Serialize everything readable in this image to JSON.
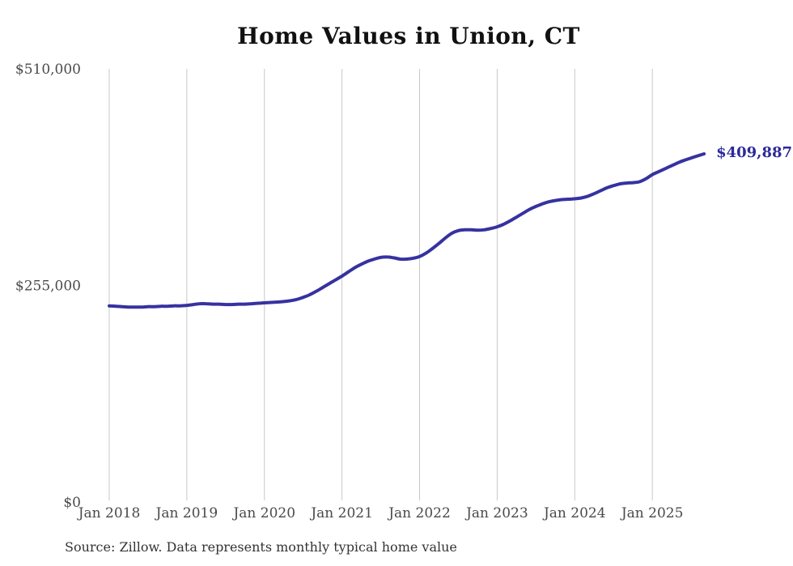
{
  "header": {
    "title": "Home Values in Union, CT"
  },
  "annotation": {
    "latest_value_label": "$409,887"
  },
  "footer": {
    "source_note": "Source: Zillow. Data represents monthly typical home value"
  },
  "colors": {
    "line": "#3632a0",
    "annotation_text": "#2d2a9b",
    "gridline": "#c8c8c8",
    "title_text": "#111111",
    "axis_text": "#4a4a4a",
    "source_text": "#333333",
    "background": "#ffffff"
  },
  "chart_data": {
    "type": "line",
    "title": "Home Values in Union, CT",
    "series_name": "Monthly typical home value (ZHVI)",
    "ylim": [
      0,
      510000
    ],
    "grid": "vertical gridline at each January, no horizontal gridlines",
    "legend": "none",
    "last_value_label": "$409,887",
    "y_ticks": [
      {
        "label": "$0",
        "value": 0
      },
      {
        "label": "$255,000",
        "value": 255000
      },
      {
        "label": "$510,000",
        "value": 510000
      }
    ],
    "x_tick_labels": [
      "Jan 2018",
      "Jan 2019",
      "Jan 2020",
      "Jan 2021",
      "Jan 2022",
      "Jan 2023",
      "Jan 2024",
      "Jan 2025"
    ],
    "months_per_tick": 12,
    "x": [
      "2018-01",
      "2018-02",
      "2018-03",
      "2018-04",
      "2018-05",
      "2018-06",
      "2018-07",
      "2018-08",
      "2018-09",
      "2018-10",
      "2018-11",
      "2018-12",
      "2019-01",
      "2019-02",
      "2019-03",
      "2019-04",
      "2019-05",
      "2019-06",
      "2019-07",
      "2019-08",
      "2019-09",
      "2019-10",
      "2019-11",
      "2019-12",
      "2020-01",
      "2020-02",
      "2020-03",
      "2020-04",
      "2020-05",
      "2020-06",
      "2020-07",
      "2020-08",
      "2020-09",
      "2020-10",
      "2020-11",
      "2020-12",
      "2021-01",
      "2021-02",
      "2021-03",
      "2021-04",
      "2021-05",
      "2021-06",
      "2021-07",
      "2021-08",
      "2021-09",
      "2021-10",
      "2021-11",
      "2021-12",
      "2022-01",
      "2022-02",
      "2022-03",
      "2022-04",
      "2022-05",
      "2022-06",
      "2022-07",
      "2022-08",
      "2022-09",
      "2022-10",
      "2022-11",
      "2022-12",
      "2023-01",
      "2023-02",
      "2023-03",
      "2023-04",
      "2023-05",
      "2023-06",
      "2023-07",
      "2023-08",
      "2023-09",
      "2023-10",
      "2023-11",
      "2023-12",
      "2024-01",
      "2024-02",
      "2024-03",
      "2024-04",
      "2024-05",
      "2024-06",
      "2024-07",
      "2024-08",
      "2024-09",
      "2024-10",
      "2024-11",
      "2024-12",
      "2025-01",
      "2025-02",
      "2025-03",
      "2025-04",
      "2025-05",
      "2025-06",
      "2025-07",
      "2025-08",
      "2025-09"
    ],
    "values": [
      231000,
      230500,
      230000,
      229500,
      229500,
      229500,
      230000,
      230000,
      230500,
      230500,
      231000,
      231000,
      231500,
      232500,
      233500,
      233500,
      233000,
      233000,
      232500,
      232500,
      233000,
      233000,
      233500,
      234000,
      234500,
      235000,
      235500,
      236000,
      237000,
      238500,
      241000,
      244000,
      248000,
      252500,
      257000,
      261500,
      266000,
      271000,
      276000,
      280000,
      283500,
      286000,
      288000,
      288500,
      287500,
      286000,
      286000,
      287000,
      289000,
      293000,
      298500,
      304500,
      311000,
      316500,
      319500,
      320500,
      320500,
      320000,
      320500,
      322000,
      324000,
      327000,
      331000,
      335500,
      340000,
      344500,
      348000,
      351000,
      353500,
      355000,
      356000,
      356500,
      357000,
      358000,
      360000,
      363000,
      366500,
      370000,
      372500,
      374500,
      375500,
      376000,
      377000,
      380500,
      385500,
      389000,
      392500,
      396000,
      399500,
      402500,
      405000,
      407500,
      409887
    ]
  }
}
